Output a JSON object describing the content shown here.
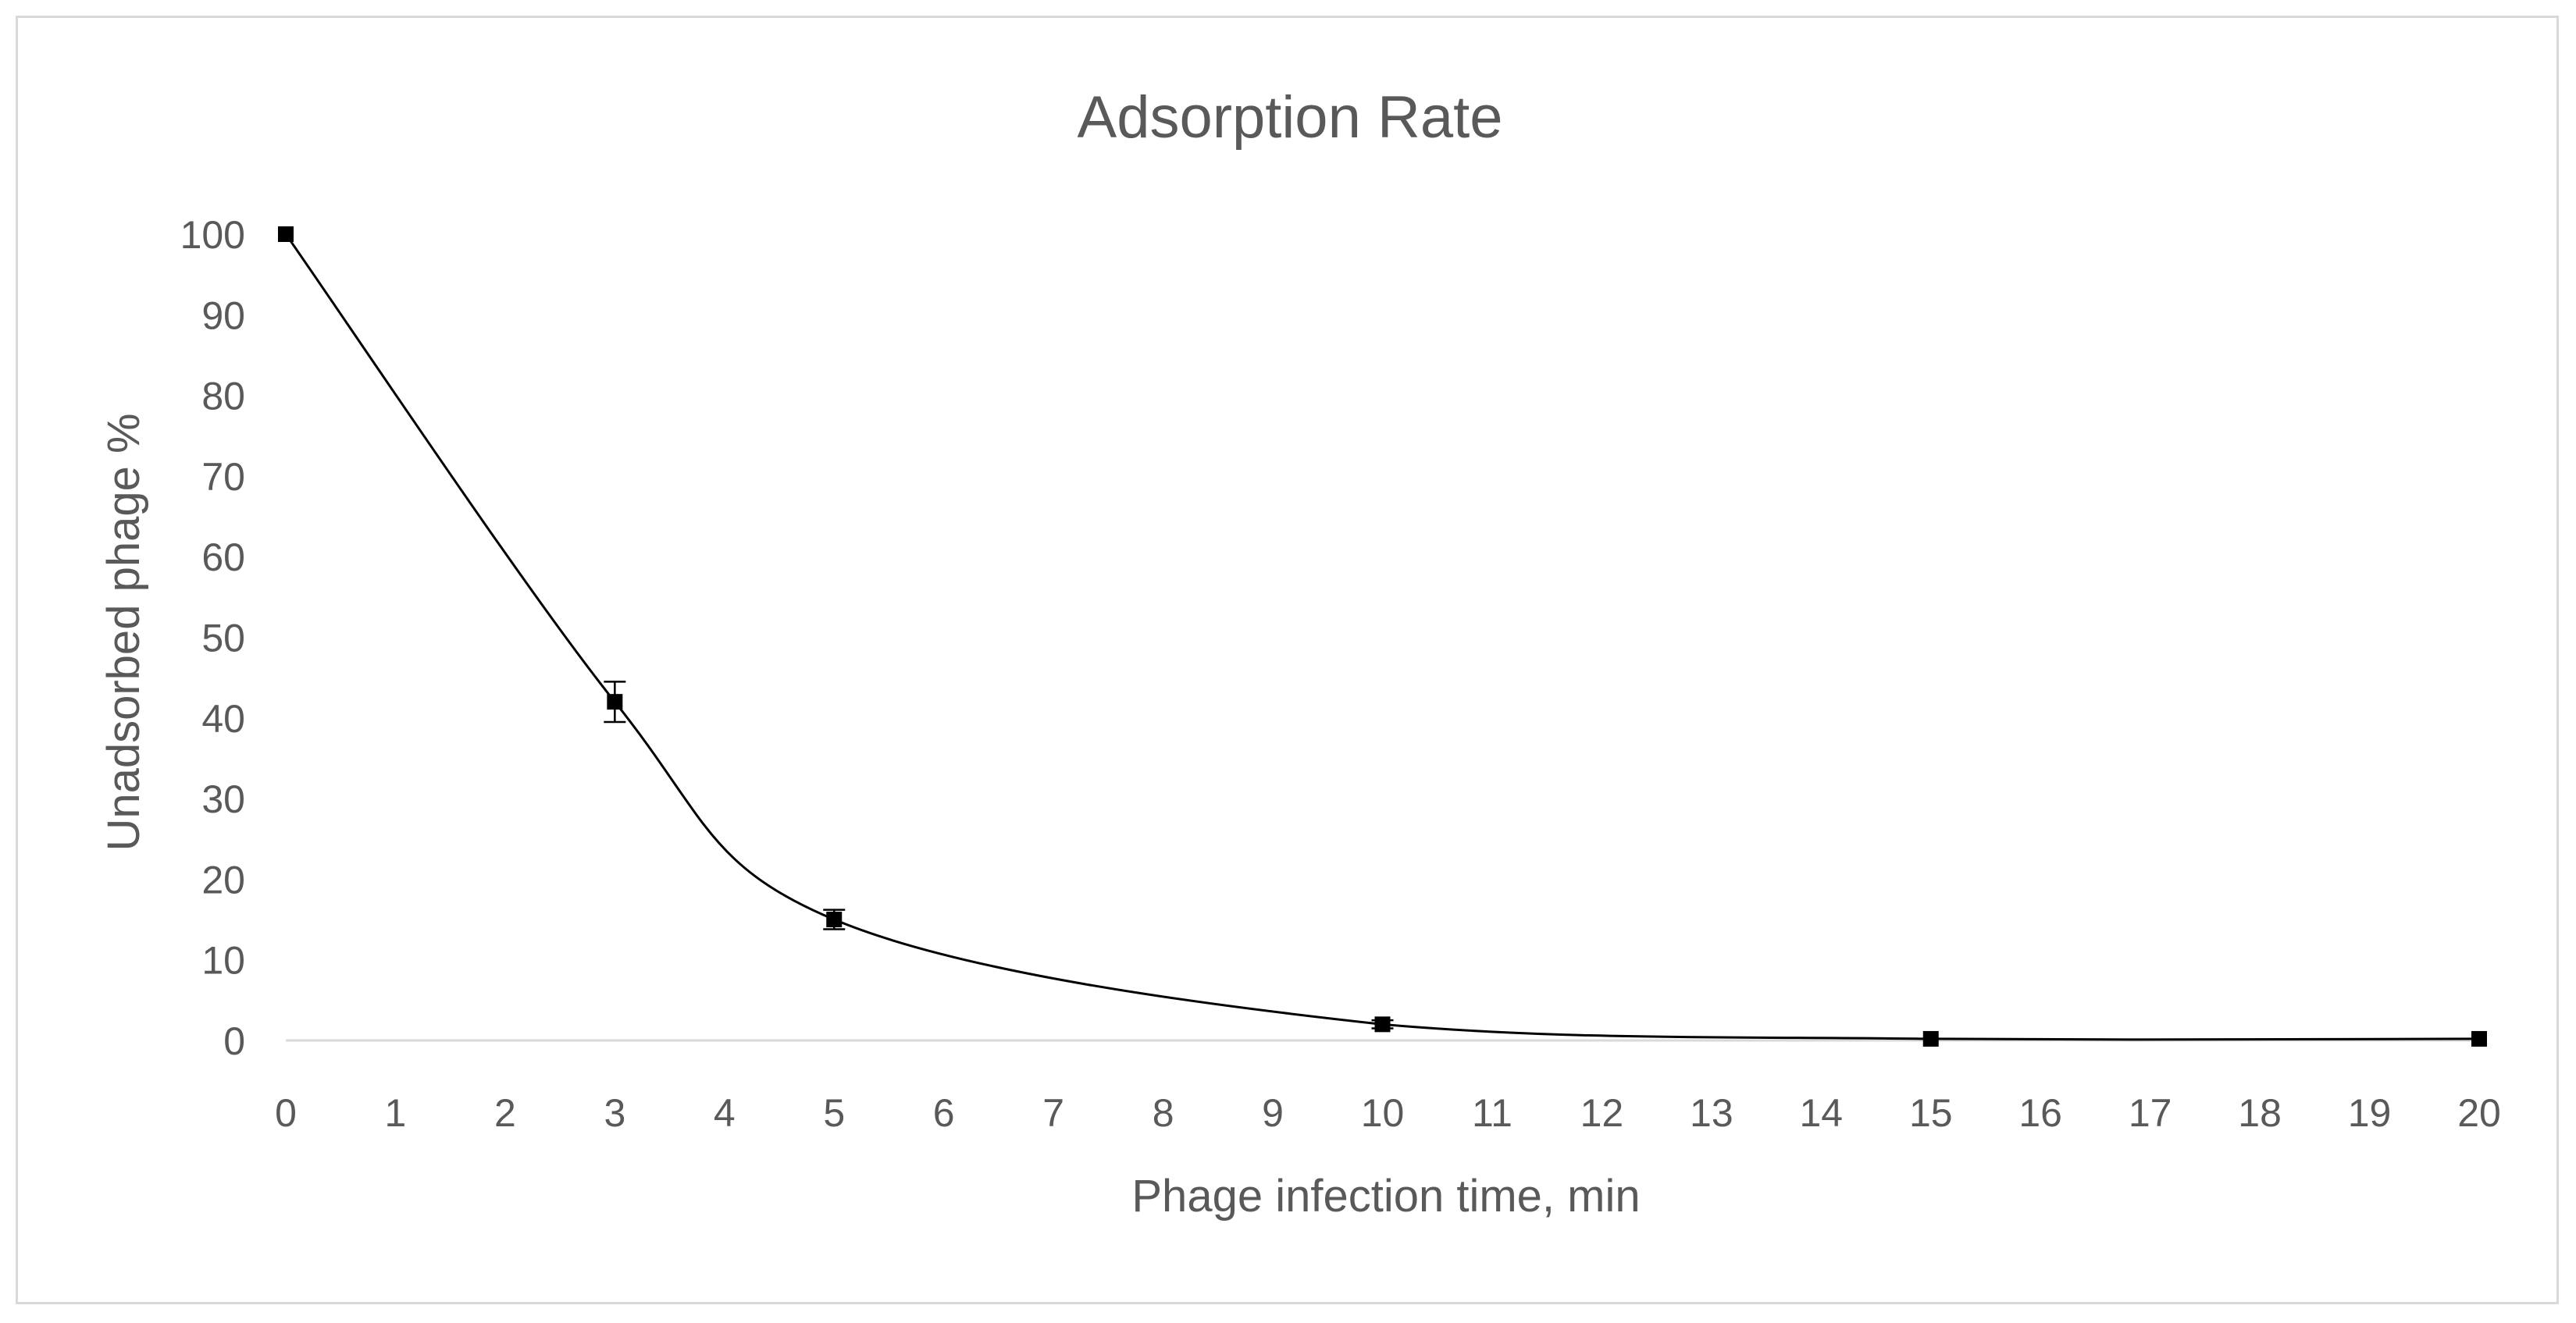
{
  "chart_data": {
    "type": "line",
    "title": "Adsorption Rate",
    "xlabel": "Phage infection time, min",
    "ylabel": "Unadsorbed phage %",
    "xlim": [
      0,
      20
    ],
    "ylim": [
      0,
      100
    ],
    "x_ticks": [
      0,
      1,
      2,
      3,
      4,
      5,
      6,
      7,
      8,
      9,
      10,
      11,
      12,
      13,
      14,
      15,
      16,
      17,
      18,
      19,
      20
    ],
    "y_ticks": [
      0,
      10,
      20,
      30,
      40,
      50,
      60,
      70,
      80,
      90,
      100
    ],
    "grid": false,
    "legend": "none",
    "series": [
      {
        "name": "Unadsorbed phage",
        "color": "#000000",
        "marker": "square",
        "smooth": true,
        "x": [
          0,
          3,
          5,
          10,
          15,
          20
        ],
        "y": [
          100,
          42,
          15,
          2,
          0.2,
          0.2
        ],
        "error": [
          0,
          2.5,
          1.2,
          0.5,
          0,
          0
        ]
      }
    ]
  }
}
